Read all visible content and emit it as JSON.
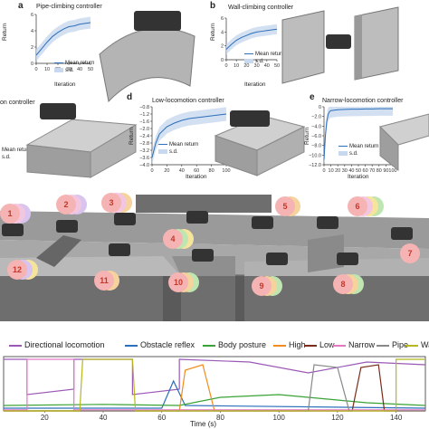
{
  "panels": [
    {
      "id": "a",
      "label": "a",
      "title": "Pipe-climbing controller",
      "ylabel": "Return",
      "xlabel": "Iteration",
      "yticks": [
        "6",
        "4",
        "2",
        "0"
      ],
      "xticks": [
        "0",
        "10",
        "20",
        "30",
        "40",
        "50"
      ],
      "legend": [
        "Mean return",
        "s.d."
      ]
    },
    {
      "id": "b",
      "label": "b",
      "title": "Wall-climbing controller",
      "ylabel": "Return",
      "xlabel": "Iteration",
      "yticks": [
        "6",
        "4",
        "2",
        "0"
      ],
      "xticks": [
        "0",
        "10",
        "20",
        "30",
        "40",
        "50"
      ],
      "legend": [
        "Mean return",
        "s.d."
      ]
    },
    {
      "id": "c",
      "label": "",
      "title": "on controller",
      "ylabel": "",
      "xlabel": "",
      "yticks": [],
      "xticks": [],
      "legend": [
        "Mean return",
        "s.d."
      ]
    },
    {
      "id": "d",
      "label": "d",
      "title": "Low-locomotion controller",
      "ylabel": "Return",
      "xlabel": "Iteration",
      "yticks": [
        "−0.8",
        "−1.2",
        "−1.6",
        "−2.0",
        "−2.4",
        "−2.8",
        "−3.2",
        "−3.6",
        "−4.0"
      ],
      "xticks": [
        "0",
        "20",
        "40",
        "60",
        "80",
        "100"
      ],
      "legend": [
        "Mean return",
        "s.d."
      ]
    },
    {
      "id": "e",
      "label": "e",
      "title": "Narrow-locomotion controller",
      "ylabel": "Return",
      "xlabel": "Iteration",
      "yticks": [
        "0",
        "−2.0",
        "−4.0",
        "−6.0",
        "−8.0",
        "−10.0",
        "−12.0"
      ],
      "xticks": [
        "0",
        "10",
        "20",
        "30",
        "40",
        "50",
        "60",
        "70",
        "80",
        "90",
        "100"
      ],
      "legend": [
        "Mean return",
        "s.d."
      ]
    }
  ],
  "scene": {
    "badges": [
      "1",
      "2",
      "3",
      "4",
      "5",
      "6",
      "7",
      "8",
      "9",
      "10",
      "11",
      "12"
    ]
  },
  "timeline": {
    "legend": [
      {
        "name": "Directional locomotion",
        "color": "#9b59b6"
      },
      {
        "name": "Obstacle reflex",
        "color": "#2c6fbb"
      },
      {
        "name": "Body posture",
        "color": "#3aa335"
      },
      {
        "name": "High",
        "color": "#f28c1e"
      },
      {
        "name": "Low",
        "color": "#7a2d1a"
      },
      {
        "name": "Narrow",
        "color": "#e377c2"
      },
      {
        "name": "Pipe",
        "color": "#888888"
      },
      {
        "name": "Wall",
        "color": "#b5b81e"
      }
    ],
    "xlabel": "Time (s)",
    "xticks": [
      "20",
      "40",
      "60",
      "80",
      "100",
      "120",
      "140"
    ]
  },
  "chart_data": [
    {
      "type": "line",
      "title": "Pipe-climbing controller",
      "xlabel": "Iteration",
      "ylabel": "Return",
      "xlim": [
        0,
        50
      ],
      "ylim": [
        0,
        6
      ],
      "series": [
        {
          "name": "Mean return",
          "x": [
            0,
            5,
            10,
            15,
            20,
            25,
            30,
            35,
            40,
            45,
            50
          ],
          "values": [
            1.0,
            1.8,
            2.6,
            3.3,
            3.8,
            4.2,
            4.5,
            4.6,
            4.8,
            4.9,
            5.0
          ]
        }
      ],
      "legend": [
        "Mean return",
        "s.d."
      ]
    },
    {
      "type": "line",
      "title": "Wall-climbing controller",
      "xlabel": "Iteration",
      "ylabel": "Return",
      "xlim": [
        0,
        50
      ],
      "ylim": [
        0,
        6
      ],
      "series": [
        {
          "name": "Mean return",
          "x": [
            0,
            5,
            10,
            15,
            20,
            25,
            30,
            35,
            40,
            45,
            50
          ],
          "values": [
            1.5,
            2.2,
            2.8,
            3.2,
            3.5,
            3.8,
            4.0,
            4.1,
            4.2,
            4.3,
            4.4
          ]
        }
      ],
      "legend": [
        "Mean return",
        "s.d."
      ]
    },
    {
      "type": "line",
      "title": "Low-locomotion controller",
      "xlabel": "Iteration",
      "ylabel": "Return",
      "xlim": [
        0,
        100
      ],
      "ylim": [
        -4.0,
        -0.8
      ],
      "series": [
        {
          "name": "Mean return",
          "x": [
            0,
            5,
            10,
            20,
            30,
            40,
            50,
            60,
            70,
            80,
            90,
            100
          ],
          "values": [
            -3.6,
            -2.8,
            -2.3,
            -1.9,
            -1.7,
            -1.55,
            -1.45,
            -1.4,
            -1.35,
            -1.3,
            -1.25,
            -1.2
          ]
        }
      ],
      "legend": [
        "Mean return",
        "s.d."
      ]
    },
    {
      "type": "line",
      "title": "Narrow-locomotion controller",
      "xlabel": "Iteration",
      "ylabel": "Return",
      "xlim": [
        0,
        100
      ],
      "ylim": [
        -12.0,
        0
      ],
      "series": [
        {
          "name": "Mean return",
          "x": [
            0,
            2,
            4,
            6,
            8,
            10,
            20,
            30,
            40,
            50,
            60,
            70,
            80,
            90,
            100
          ],
          "values": [
            -11.0,
            -6.0,
            -3.0,
            -1.6,
            -1.0,
            -0.8,
            -0.6,
            -0.55,
            -0.5,
            -0.5,
            -0.45,
            -0.45,
            -0.4,
            -0.4,
            -0.4
          ]
        }
      ],
      "legend": [
        "Mean return",
        "s.d."
      ]
    }
  ]
}
